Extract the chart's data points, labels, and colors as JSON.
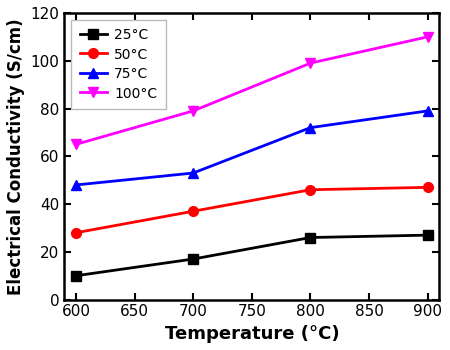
{
  "title": "",
  "xlabel": "Temperature (°C)",
  "ylabel": "Electrical Conductivity (S/cm)",
  "xlim": [
    590,
    910
  ],
  "ylim": [
    0,
    120
  ],
  "xticks": [
    600,
    650,
    700,
    750,
    800,
    850,
    900
  ],
  "yticks": [
    0,
    20,
    40,
    60,
    80,
    100,
    120
  ],
  "series": [
    {
      "label": "25°C",
      "color": "#000000",
      "marker": "s",
      "x": [
        600,
        700,
        800,
        900
      ],
      "y": [
        10,
        17,
        26,
        27
      ]
    },
    {
      "label": "50°C",
      "color": "#ff0000",
      "marker": "o",
      "x": [
        600,
        700,
        800,
        900
      ],
      "y": [
        28,
        37,
        46,
        47
      ]
    },
    {
      "label": "75°C",
      "color": "#0000ff",
      "marker": "^",
      "x": [
        600,
        700,
        800,
        900
      ],
      "y": [
        48,
        53,
        72,
        79
      ]
    },
    {
      "label": "100°C",
      "color": "#ff00ff",
      "marker": "v",
      "x": [
        600,
        700,
        800,
        900
      ],
      "y": [
        65,
        79,
        99,
        110
      ]
    }
  ],
  "legend_loc": "upper left",
  "linewidth": 2.0,
  "markersize": 7,
  "background_color": "#ffffff",
  "tick_direction": "in",
  "spine_linewidth": 1.8,
  "xlabel_fontsize": 13,
  "ylabel_fontsize": 12,
  "tick_labelsize": 11
}
